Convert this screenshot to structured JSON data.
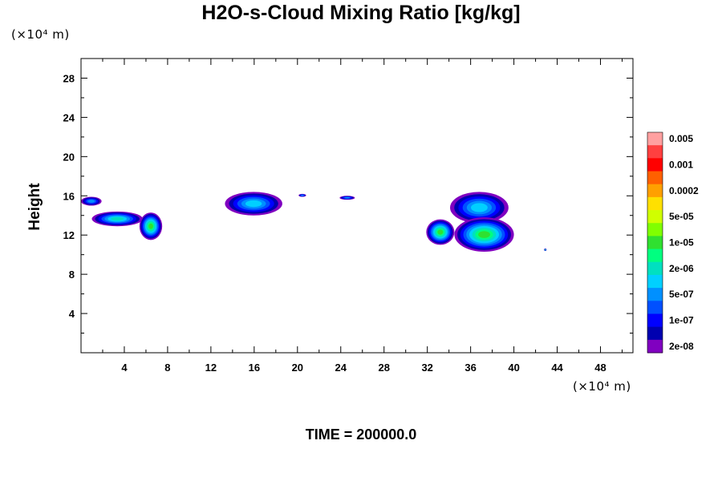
{
  "chart_data": {
    "type": "heatmap",
    "title": "H2O-s-Cloud Mixing Ratio [kg/kg]",
    "ylabel": "Height",
    "xlabel": "",
    "x_unit_label": "(×10⁴ m)",
    "y_unit_label": "(×10⁴ m)",
    "footer": "TIME = 200000.0",
    "xlim": [
      0,
      51
    ],
    "ylim": [
      0,
      30
    ],
    "x_ticks": [
      4,
      8,
      12,
      16,
      20,
      24,
      28,
      32,
      36,
      40,
      44,
      48
    ],
    "y_ticks": [
      4,
      8,
      12,
      16,
      20,
      24,
      28
    ],
    "colorbar": {
      "levels": [
        "2e-08",
        "1e-07",
        "5e-07",
        "2e-06",
        "1e-05",
        "5e-05",
        "0.0002",
        "0.001",
        "0.005"
      ],
      "colors": [
        "#ffa0a0",
        "#ff4040",
        "#ff0000",
        "#ff6000",
        "#ffa000",
        "#ffe000",
        "#d0ff00",
        "#80ff00",
        "#30e030",
        "#00ff80",
        "#00e0c0",
        "#00d0ff",
        "#0090ff",
        "#0050ff",
        "#0000ff",
        "#0000b0",
        "#8000c0"
      ]
    },
    "regions": [
      {
        "x": [
          0.0,
          1.9
        ],
        "y": [
          15.0,
          15.9
        ],
        "level": 1
      },
      {
        "x": [
          1.0,
          5.7
        ],
        "y": [
          12.9,
          14.4
        ],
        "level": 3
      },
      {
        "x": [
          5.4,
          7.5
        ],
        "y": [
          11.5,
          14.3
        ],
        "level": 5
      },
      {
        "x": [
          13.3,
          18.6
        ],
        "y": [
          14.0,
          16.4
        ],
        "level": 2
      },
      {
        "x": [
          20.1,
          20.8
        ],
        "y": [
          15.9,
          16.2
        ],
        "level": 1
      },
      {
        "x": [
          23.9,
          25.3
        ],
        "y": [
          15.6,
          16.0
        ],
        "level": 1
      },
      {
        "x": [
          31.9,
          34.5
        ],
        "y": [
          11.0,
          13.6
        ],
        "level": 5
      },
      {
        "x": [
          34.1,
          39.5
        ],
        "y": [
          13.2,
          16.4
        ],
        "level": 2
      },
      {
        "x": [
          34.5,
          40.0
        ],
        "y": [
          10.3,
          13.8
        ],
        "level": 5
      },
      {
        "x": [
          42.8,
          43.0
        ],
        "y": [
          10.4,
          10.6
        ],
        "level": 5
      }
    ]
  }
}
